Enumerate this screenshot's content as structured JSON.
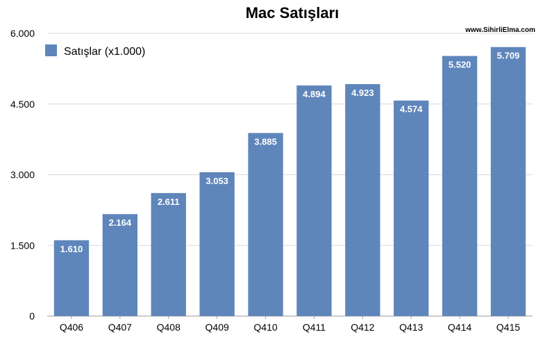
{
  "chart_data": {
    "type": "bar",
    "title": "Mac Satışları",
    "watermark": "www.SihirliElma.com",
    "categories": [
      "Q406",
      "Q407",
      "Q408",
      "Q409",
      "Q410",
      "Q411",
      "Q412",
      "Q413",
      "Q414",
      "Q415"
    ],
    "series": [
      {
        "name": "Satışlar (x1.000)",
        "values": [
          1610,
          2164,
          2611,
          3053,
          3885,
          4894,
          4923,
          4574,
          5520,
          5709
        ],
        "labels": [
          "1.610",
          "2.164",
          "2.611",
          "3.053",
          "3.885",
          "4.894",
          "4.923",
          "4.574",
          "5.520",
          "5.709"
        ],
        "color": "#5f86bb"
      }
    ],
    "ylim": [
      0,
      6000
    ],
    "yticks": [
      0,
      1500,
      3000,
      4500,
      6000
    ],
    "ytick_labels": [
      "0",
      "1.500",
      "3.000",
      "4.500",
      "6.000"
    ],
    "xlabel": "",
    "ylabel": "",
    "grid": true,
    "legend": "top-left"
  }
}
